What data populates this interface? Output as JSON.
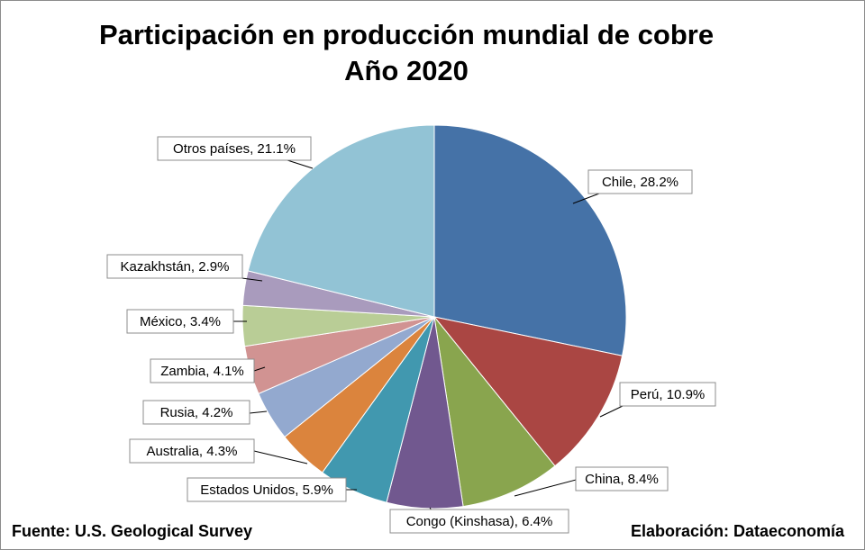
{
  "chart_data": {
    "type": "pie",
    "title": "Participación en producción mundial de cobre",
    "subtitle": "Año 2020",
    "slices": [
      {
        "label": "Chile",
        "value": 28.2,
        "text": "Chile, 28.2%",
        "color": "#4572A7"
      },
      {
        "label": "Perú",
        "value": 10.9,
        "text": "Perú, 10.9%",
        "color": "#AA4643"
      },
      {
        "label": "China",
        "value": 8.4,
        "text": "China, 8.4%",
        "color": "#89A54E"
      },
      {
        "label": "Congo (Kinshasa)",
        "value": 6.4,
        "text": "Congo (Kinshasa), 6.4%",
        "color": "#71588F"
      },
      {
        "label": "Estados Unidos",
        "value": 5.9,
        "text": "Estados Unidos, 5.9%",
        "color": "#4198AF"
      },
      {
        "label": "Australia",
        "value": 4.3,
        "text": "Australia, 4.3%",
        "color": "#DB843D"
      },
      {
        "label": "Rusia",
        "value": 4.2,
        "text": "Rusia, 4.2%",
        "color": "#93A9CF"
      },
      {
        "label": "Zambia",
        "value": 4.1,
        "text": "Zambia, 4.1%",
        "color": "#D19392"
      },
      {
        "label": "México",
        "value": 3.4,
        "text": "México, 3.4%",
        "color": "#B9CD96"
      },
      {
        "label": "Kazakhstán",
        "value": 2.9,
        "text": "Kazakhstán, 2.9%",
        "color": "#A99BBD"
      },
      {
        "label": "Otros países",
        "value": 21.1,
        "text": "Otros países, 21.1%",
        "color": "#92C3D5"
      }
    ]
  },
  "footer": {
    "source": "Fuente: U.S. Geological Survey",
    "credit": "Elaboración: Dataeconomía"
  }
}
